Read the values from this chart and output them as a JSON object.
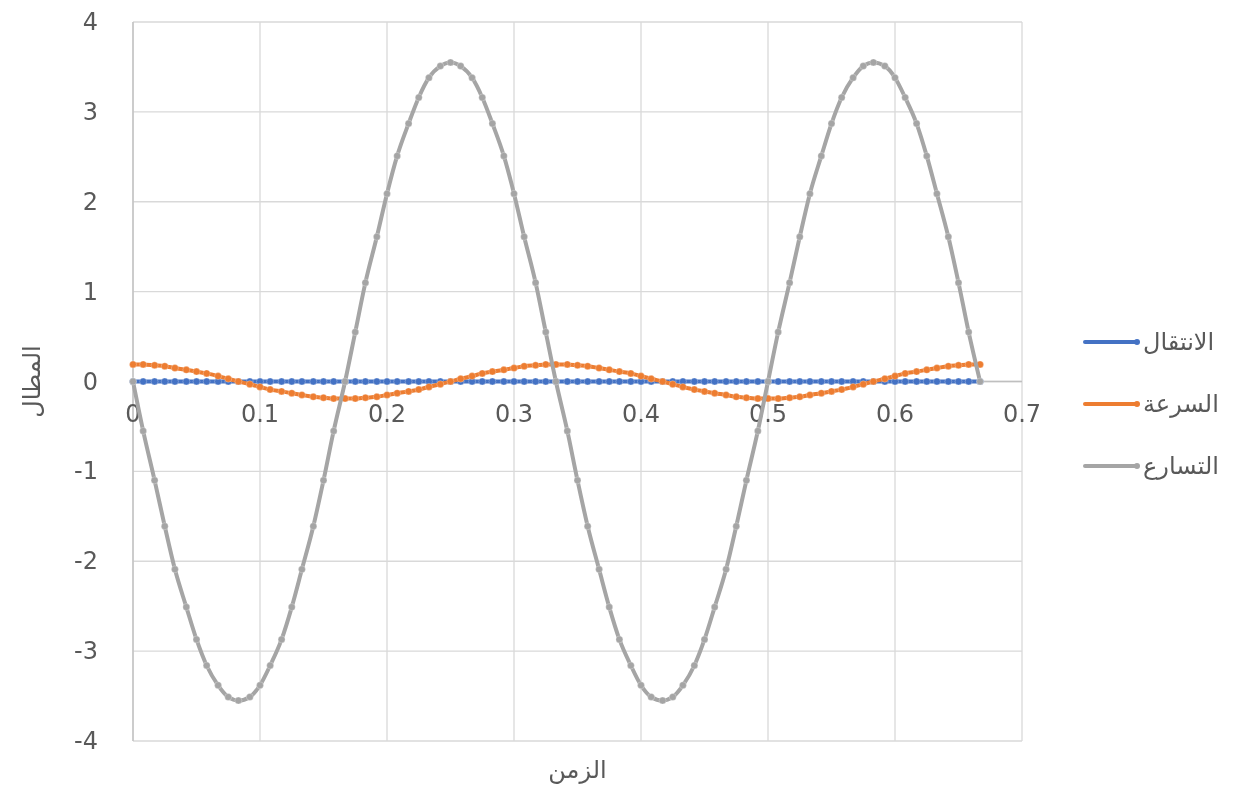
{
  "chart_data": {
    "type": "line",
    "xlabel": "الزمن",
    "ylabel": "المطال",
    "x": [
      0,
      0.008,
      0.017,
      0.025,
      0.033,
      0.042,
      0.05,
      0.058,
      0.067,
      0.075,
      0.083,
      0.092,
      0.1,
      0.108,
      0.117,
      0.125,
      0.133,
      0.142,
      0.15,
      0.158,
      0.167,
      0.175,
      0.183,
      0.192,
      0.2,
      0.208,
      0.217,
      0.225,
      0.233,
      0.242,
      0.25,
      0.258,
      0.267,
      0.275,
      0.283,
      0.292,
      0.3,
      0.308,
      0.317,
      0.325,
      0.333,
      0.342,
      0.35,
      0.358,
      0.367,
      0.375,
      0.383,
      0.392,
      0.4,
      0.408,
      0.417,
      0.425,
      0.433,
      0.442,
      0.45,
      0.458,
      0.467,
      0.475,
      0.483,
      0.492,
      0.5,
      0.508,
      0.517,
      0.525,
      0.533,
      0.542,
      0.55,
      0.558,
      0.567,
      0.575,
      0.583,
      0.592,
      0.6,
      0.608,
      0.617,
      0.625,
      0.633,
      0.642,
      0.65,
      0.658,
      0.667
    ],
    "series": [
      {
        "name": "الانتقال",
        "color": "#4472c4",
        "values": [
          0,
          0,
          0,
          0,
          0,
          0,
          0,
          0,
          0,
          0,
          0,
          0,
          0,
          0,
          0,
          0,
          0,
          0,
          0,
          0,
          0,
          0,
          0,
          0,
          0,
          0,
          0,
          0,
          0,
          0,
          0,
          0,
          0,
          0,
          0,
          0,
          0,
          0,
          0,
          0,
          0,
          0,
          0,
          0,
          0,
          0,
          0,
          0,
          0,
          0,
          0,
          0,
          0,
          0,
          0,
          0,
          0,
          0,
          0,
          0,
          0,
          0,
          0,
          0,
          0,
          0,
          0,
          0,
          0,
          0,
          0,
          0,
          0,
          0,
          0,
          0,
          0,
          0,
          0,
          0,
          0
        ]
      },
      {
        "name": "السرعة",
        "color": "#ed7d31",
        "values": [
          0.19,
          0.19,
          0.18,
          0.17,
          0.15,
          0.13,
          0.11,
          0.09,
          0.06,
          0.03,
          0,
          -0.03,
          -0.06,
          -0.09,
          -0.11,
          -0.13,
          -0.15,
          -0.17,
          -0.18,
          -0.19,
          -0.19,
          -0.19,
          -0.18,
          -0.17,
          -0.15,
          -0.13,
          -0.11,
          -0.09,
          -0.06,
          -0.03,
          0,
          0.03,
          0.06,
          0.09,
          0.11,
          0.13,
          0.15,
          0.17,
          0.18,
          0.19,
          0.19,
          0.19,
          0.18,
          0.17,
          0.15,
          0.13,
          0.11,
          0.09,
          0.06,
          0.03,
          0,
          -0.03,
          -0.06,
          -0.09,
          -0.11,
          -0.13,
          -0.15,
          -0.17,
          -0.18,
          -0.19,
          -0.19,
          -0.19,
          -0.18,
          -0.17,
          -0.15,
          -0.13,
          -0.11,
          -0.09,
          -0.06,
          -0.03,
          0,
          0.03,
          0.06,
          0.09,
          0.11,
          0.13,
          0.15,
          0.17,
          0.18,
          0.19,
          0.19
        ]
      },
      {
        "name": "التسارع",
        "color": "#a5a5a5",
        "values": [
          0,
          -0.55,
          -1.1,
          -1.61,
          -2.09,
          -2.51,
          -2.87,
          -3.16,
          -3.38,
          -3.51,
          -3.55,
          -3.51,
          -3.38,
          -3.16,
          -2.87,
          -2.51,
          -2.09,
          -1.61,
          -1.1,
          -0.55,
          0,
          0.55,
          1.1,
          1.61,
          2.09,
          2.51,
          2.87,
          3.16,
          3.38,
          3.51,
          3.55,
          3.51,
          3.38,
          3.16,
          2.87,
          2.51,
          2.09,
          1.61,
          1.1,
          0.55,
          0,
          -0.55,
          -1.1,
          -1.61,
          -2.09,
          -2.51,
          -2.87,
          -3.16,
          -3.38,
          -3.51,
          -3.55,
          -3.51,
          -3.38,
          -3.16,
          -2.87,
          -2.51,
          -2.09,
          -1.61,
          -1.1,
          -0.55,
          0,
          0.55,
          1.1,
          1.61,
          2.09,
          2.51,
          2.87,
          3.16,
          3.38,
          3.51,
          3.55,
          3.51,
          3.38,
          3.16,
          2.87,
          2.51,
          2.09,
          1.61,
          1.1,
          0.55,
          0
        ]
      }
    ],
    "xlim": [
      0,
      0.7
    ],
    "xticks": [
      0,
      0.1,
      0.2,
      0.3,
      0.4,
      0.5,
      0.6,
      0.7
    ],
    "ylim": [
      -4,
      4
    ],
    "yticks": [
      -4,
      -3,
      -2,
      -1,
      0,
      1,
      2,
      3,
      4
    ],
    "grid": true,
    "legend": "right",
    "marker": "circle",
    "line_style": "solid"
  }
}
